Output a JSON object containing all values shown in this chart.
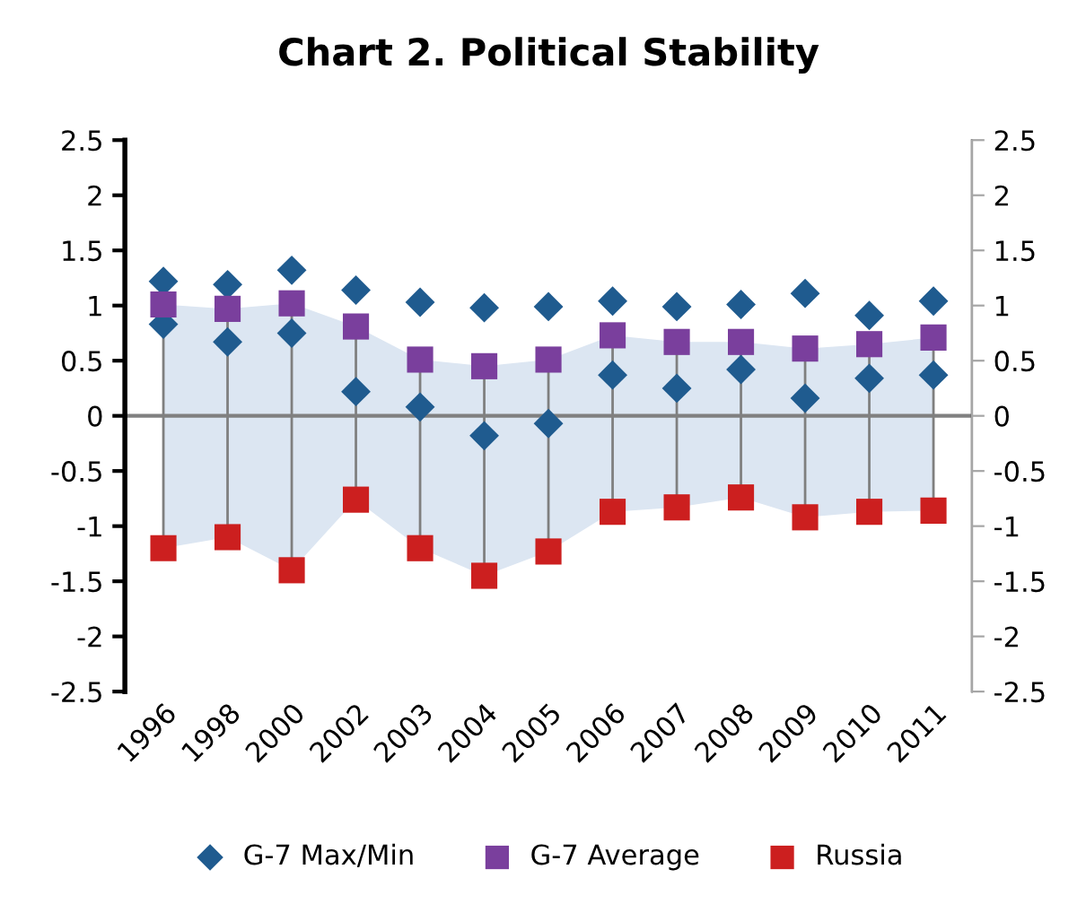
{
  "chart_data": {
    "type": "scatter",
    "title": "Chart 2. Political Stability",
    "categories": [
      "1996",
      "1998",
      "2000",
      "2002",
      "2003",
      "2004",
      "2005",
      "2006",
      "2007",
      "2008",
      "2009",
      "2010",
      "2011"
    ],
    "series": [
      {
        "name": "G-7 Max/Min",
        "marker": "diamond",
        "color": "#1f5b8f",
        "values": [
          1.22,
          1.19,
          1.32,
          1.14,
          1.03,
          0.98,
          0.99,
          1.04,
          0.99,
          1.01,
          1.11,
          0.91,
          1.04
        ]
      },
      {
        "marker": "diamond",
        "color": "#1f5b8f",
        "values": [
          0.83,
          0.67,
          0.75,
          0.22,
          0.08,
          -0.18,
          -0.07,
          0.37,
          0.25,
          0.42,
          0.16,
          0.34,
          0.37
        ]
      },
      {
        "name": "G-7 Average",
        "marker": "square",
        "color": "#7a3f9d",
        "values": [
          1.01,
          0.97,
          1.02,
          0.81,
          0.51,
          0.45,
          0.51,
          0.73,
          0.67,
          0.67,
          0.61,
          0.65,
          0.71
        ],
        "upper": [
          1.01,
          0.97,
          1.02,
          0.81,
          0.51,
          0.45,
          0.51,
          0.73,
          0.67,
          0.67,
          0.61,
          0.65,
          0.71
        ],
        "lower": [
          -1.2,
          -1.1,
          -1.4,
          -0.76,
          -1.2,
          -1.45,
          -1.23,
          -0.87,
          -0.83,
          -0.74,
          -0.92,
          -0.87,
          -0.86
        ]
      },
      {
        "name": "Russia",
        "marker": "square",
        "color": "#cc1f1f",
        "values": [
          -1.2,
          -1.1,
          -1.4,
          -0.76,
          -1.2,
          -1.45,
          -1.23,
          -0.87,
          -0.83,
          -0.74,
          -0.92,
          -0.87,
          -0.86
        ]
      }
    ],
    "ylim": [
      -2.5,
      2.5
    ],
    "yticks": [
      2.5,
      2,
      1.5,
      1,
      0.5,
      0,
      -0.5,
      -1,
      -1.5,
      -2,
      -2.5
    ],
    "y2lim": [
      -2.5,
      2.5
    ],
    "y2ticks": [
      2.5,
      2,
      1.5,
      1,
      0.5,
      0,
      -0.5,
      -1,
      -1.5,
      -2,
      -2.5
    ],
    "ref_lines": [
      {
        "axis": "y",
        "value": 0,
        "color": "#808080"
      }
    ],
    "grid": false,
    "legend": "bottom"
  }
}
